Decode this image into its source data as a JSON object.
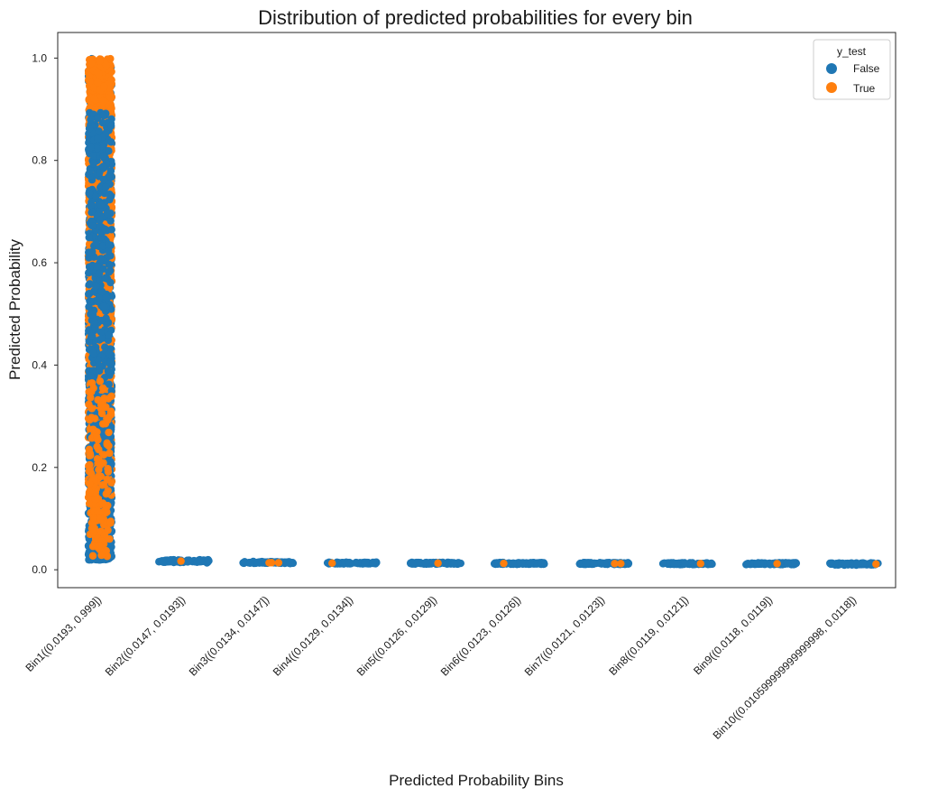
{
  "chart_data": {
    "type": "scatter",
    "subtype": "strip",
    "title": "Distribution of predicted probabilities for every bin",
    "xlabel": "Predicted Probability Bins",
    "ylabel": "Predicted Probability",
    "ylim": [
      -0.035,
      1.05
    ],
    "y_ticks": [
      0.0,
      0.2,
      0.4,
      0.6,
      0.8,
      1.0
    ],
    "y_tick_labels": [
      "0.0",
      "0.2",
      "0.4",
      "0.6",
      "0.8",
      "1.0"
    ],
    "grid": false,
    "categories": [
      "Bin1((0.0193, 0.999])",
      "Bin2((0.0147, 0.0193])",
      "Bin3((0.0134, 0.0147])",
      "Bin4((0.0129, 0.0134])",
      "Bin5((0.0126, 0.0129])",
      "Bin6((0.0123, 0.0126])",
      "Bin7((0.0121, 0.0123])",
      "Bin8((0.0119, 0.0121])",
      "Bin9((0.0118, 0.0119])",
      "Bin10((0.010599999999999998, 0.0118])"
    ],
    "bin_ranges": [
      [
        0.0193,
        0.999
      ],
      [
        0.0147,
        0.0193
      ],
      [
        0.0134,
        0.0147
      ],
      [
        0.0129,
        0.0134
      ],
      [
        0.0126,
        0.0129
      ],
      [
        0.0123,
        0.0126
      ],
      [
        0.0121,
        0.0123
      ],
      [
        0.0119,
        0.0121
      ],
      [
        0.0118,
        0.0119
      ],
      [
        0.0106,
        0.0118
      ]
    ],
    "legend": {
      "title": "y_test",
      "placement": "top-right",
      "entries": [
        "False",
        "True"
      ]
    },
    "series": [
      {
        "name": "False",
        "color": "#1f77b4"
      },
      {
        "name": "True",
        "color": "#ff7f0e"
      }
    ]
  }
}
